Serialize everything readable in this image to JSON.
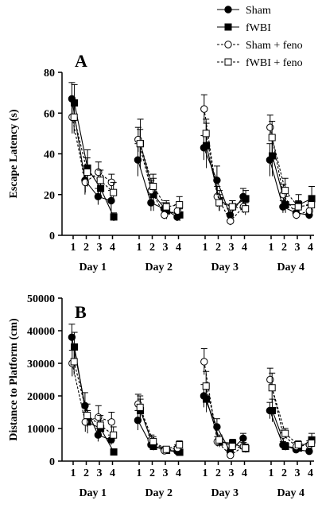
{
  "legend": [
    {
      "label": "Sham",
      "marker": "circle",
      "filled": true,
      "dashed": false
    },
    {
      "label": "fWBI",
      "marker": "square",
      "filled": true,
      "dashed": false
    },
    {
      "label": "Sham + feno",
      "marker": "circle",
      "filled": false,
      "dashed": true
    },
    {
      "label": "fWBI + feno",
      "marker": "square",
      "filled": false,
      "dashed": true
    }
  ],
  "chart_data": [
    {
      "type": "line",
      "panel": "A",
      "ylabel": "Escape Latency (s)",
      "ylim": [
        0,
        80
      ],
      "yticks": [
        0,
        20,
        40,
        60,
        80
      ],
      "groups": [
        "Day 1",
        "Day 2",
        "Day 3",
        "Day 4"
      ],
      "trials": [
        "1",
        "2",
        "3",
        "4"
      ],
      "series": [
        {
          "name": "Sham",
          "values": [
            [
              67,
              27,
              19,
              17
            ],
            [
              37,
              16,
              13,
              9
            ],
            [
              43,
              27,
              10,
              19
            ],
            [
              37,
              14,
              11,
              10
            ]
          ],
          "errors": [
            [
              8,
              7,
              4,
              5
            ],
            [
              8,
              4,
              3,
              2
            ],
            [
              6,
              7,
              3,
              4
            ],
            [
              8,
              3,
              2,
              2
            ]
          ]
        },
        {
          "name": "fWBI",
          "values": [
            [
              65,
              33,
              23,
              9
            ],
            [
              45,
              20,
              12,
              10
            ],
            [
              44,
              17,
              14,
              18
            ],
            [
              39,
              15,
              15,
              18
            ]
          ],
          "errors": [
            [
              9,
              9,
              5,
              2
            ],
            [
              12,
              8,
              4,
              3
            ],
            [
              11,
              5,
              3,
              4
            ],
            [
              10,
              4,
              5,
              6
            ]
          ]
        },
        {
          "name": "Sham + feno",
          "values": [
            [
              58,
              26,
              31,
              26
            ],
            [
              47,
              22,
              10,
              12
            ],
            [
              62,
              19,
              7,
              14
            ],
            [
              53,
              20,
              10,
              12
            ]
          ],
          "errors": [
            [
              8,
              5,
              5,
              4
            ],
            [
              6,
              5,
              2,
              3
            ],
            [
              7,
              5,
              2,
              3
            ],
            [
              6,
              5,
              2,
              3
            ]
          ]
        },
        {
          "name": "fWBI + feno",
          "values": [
            [
              58,
              31,
              27,
              21
            ],
            [
              45,
              24,
              14,
              15
            ],
            [
              50,
              16,
              14,
              13
            ],
            [
              48,
              22,
              14,
              15
            ]
          ],
          "errors": [
            [
              8,
              7,
              5,
              5
            ],
            [
              7,
              6,
              3,
              4
            ],
            [
              7,
              4,
              3,
              3
            ],
            [
              8,
              6,
              3,
              4
            ]
          ]
        }
      ]
    },
    {
      "type": "line",
      "panel": "B",
      "ylabel": "Distance to Platform (cm)",
      "ylim": [
        0,
        50000
      ],
      "yticks": [
        0,
        10000,
        20000,
        30000,
        40000,
        50000
      ],
      "groups": [
        "Day 1",
        "Day 2",
        "Day 3",
        "Day 4"
      ],
      "trials": [
        "1",
        "2",
        "3",
        "4"
      ],
      "series": [
        {
          "name": "Sham",
          "values": [
            [
              38000,
              17000,
              8000,
              6500
            ],
            [
              12500,
              5000,
              3500,
              3000
            ],
            [
              20000,
              10500,
              3000,
              7000
            ],
            [
              15500,
              5000,
              3500,
              3000
            ]
          ],
          "errors": [
            [
              4000,
              4000,
              2000,
              1500
            ],
            [
              3000,
              1200,
              800,
              800
            ],
            [
              3500,
              2500,
              1000,
              1500
            ],
            [
              2500,
              1000,
              800,
              800
            ]
          ]
        },
        {
          "name": "fWBI",
          "values": [
            [
              35000,
              12000,
              10000,
              2800
            ],
            [
              15500,
              4500,
              3300,
              2700
            ],
            [
              19000,
              5800,
              5500,
              3800
            ],
            [
              15500,
              4500,
              4000,
              6500
            ]
          ],
          "errors": [
            [
              4500,
              3500,
              2500,
              800
            ],
            [
              3500,
              1200,
              900,
              800
            ],
            [
              4000,
              1500,
              1200,
              1200
            ],
            [
              3500,
              1200,
              1000,
              2000
            ]
          ]
        },
        {
          "name": "Sham + feno",
          "values": [
            [
              30000,
              12000,
              13500,
              12000
            ],
            [
              17500,
              6500,
              3200,
              4000
            ],
            [
              30500,
              6000,
              1800,
              4500
            ],
            [
              25000,
              8000,
              4500,
              5000
            ]
          ],
          "errors": [
            [
              4000,
              3000,
              3500,
              3000
            ],
            [
              3000,
              1500,
              800,
              1000
            ],
            [
              4000,
              1500,
              600,
              1200
            ],
            [
              3500,
              1500,
              1200,
              1200
            ]
          ]
        },
        {
          "name": "fWBI + feno",
          "values": [
            [
              30500,
              14000,
              11000,
              8000
            ],
            [
              16500,
              6000,
              3600,
              5000
            ],
            [
              23000,
              6500,
              4500,
              4000
            ],
            [
              22500,
              8500,
              5000,
              5500
            ]
          ],
          "errors": [
            [
              4000,
              3500,
              3000,
              2500
            ],
            [
              3500,
              1500,
              900,
              1200
            ],
            [
              4500,
              1500,
              1200,
              1200
            ],
            [
              4500,
              1500,
              1200,
              1200
            ]
          ]
        }
      ]
    }
  ]
}
